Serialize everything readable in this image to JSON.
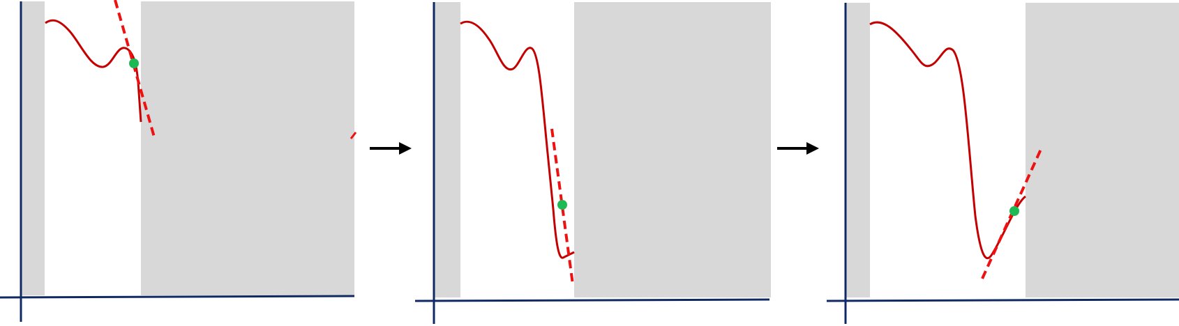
{
  "figure": {
    "description_type": "three-panel step diagram",
    "panel_count": 3,
    "colors": {
      "axes": "#0f2a63",
      "curve": "#c40000",
      "tangent": "#ee1111",
      "point": "#1db954",
      "shaded_region": "#d8d8d8",
      "transition_arrow": "#000000"
    },
    "icons": {
      "transition_arrow": "right-arrow-icon"
    },
    "legend": {
      "shown": false
    },
    "panels": [
      {
        "id": "panel-1",
        "step": 1
      },
      {
        "id": "panel-2",
        "step": 2
      },
      {
        "id": "panel-3",
        "step": 3
      }
    ]
  }
}
